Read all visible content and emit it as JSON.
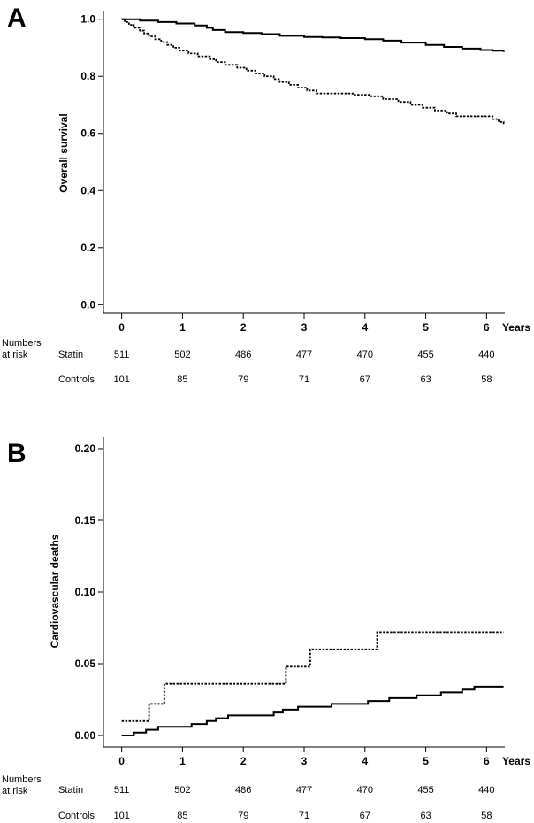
{
  "figure": {
    "risk_row_title_line1": "Numbers",
    "risk_row_title_line2": "at risk"
  },
  "chart_data": [
    {
      "type": "line",
      "panel_label": "A",
      "title": "",
      "xlabel": "Years",
      "ylabel": "Overall survival",
      "xlim": [
        -0.3,
        6.3
      ],
      "ylim": [
        -0.03,
        1.03
      ],
      "x_ticks": [
        0,
        1,
        2,
        3,
        4,
        5,
        6
      ],
      "y_ticks": [
        0.0,
        0.2,
        0.4,
        0.6,
        0.8,
        1.0
      ],
      "y_tick_labels": [
        "0.0",
        "0.2",
        "0.4",
        "0.6",
        "0.8",
        "1.0"
      ],
      "grid": false,
      "series": [
        {
          "style": "solid",
          "color": "#000000",
          "x": [
            0,
            0.3,
            0.6,
            0.9,
            1.2,
            1.4,
            1.5,
            1.7,
            2.0,
            2.3,
            2.6,
            3.0,
            3.3,
            3.6,
            4.0,
            4.3,
            4.6,
            5.0,
            5.3,
            5.6,
            5.9,
            6.1,
            6.28
          ],
          "y": [
            1.0,
            0.995,
            0.99,
            0.985,
            0.978,
            0.97,
            0.962,
            0.955,
            0.952,
            0.948,
            0.942,
            0.938,
            0.936,
            0.934,
            0.93,
            0.925,
            0.918,
            0.91,
            0.903,
            0.897,
            0.892,
            0.89,
            0.885
          ]
        },
        {
          "style": "dashed",
          "color": "#000000",
          "x": [
            0,
            0.05,
            0.12,
            0.2,
            0.3,
            0.37,
            0.45,
            0.55,
            0.65,
            0.75,
            0.85,
            0.95,
            1.1,
            1.25,
            1.45,
            1.55,
            1.7,
            1.9,
            2.05,
            2.2,
            2.35,
            2.5,
            2.6,
            2.75,
            2.9,
            3.05,
            3.2,
            3.5,
            3.8,
            4.1,
            4.3,
            4.55,
            4.75,
            4.95,
            5.15,
            5.35,
            5.5,
            5.7,
            5.95,
            6.1,
            6.2,
            6.28
          ],
          "y": [
            1.0,
            0.99,
            0.98,
            0.97,
            0.96,
            0.95,
            0.94,
            0.93,
            0.92,
            0.91,
            0.9,
            0.89,
            0.88,
            0.87,
            0.86,
            0.85,
            0.84,
            0.83,
            0.82,
            0.81,
            0.8,
            0.79,
            0.78,
            0.77,
            0.76,
            0.75,
            0.74,
            0.74,
            0.735,
            0.73,
            0.72,
            0.71,
            0.7,
            0.69,
            0.68,
            0.67,
            0.66,
            0.66,
            0.66,
            0.65,
            0.64,
            0.63
          ]
        }
      ],
      "risk_table": {
        "rows": [
          {
            "label": "Statin",
            "values": [
              "511",
              "502",
              "486",
              "477",
              "470",
              "455",
              "440"
            ]
          },
          {
            "label": "Controls",
            "values": [
              "101",
              "85",
              "79",
              "71",
              "67",
              "63",
              "58"
            ]
          }
        ]
      }
    },
    {
      "type": "line",
      "panel_label": "B",
      "title": "",
      "xlabel": "Years",
      "ylabel": "Cardiovascular deaths",
      "xlim": [
        -0.3,
        6.3
      ],
      "ylim": [
        -0.008,
        0.208
      ],
      "x_ticks": [
        0,
        1,
        2,
        3,
        4,
        5,
        6
      ],
      "y_ticks": [
        0.0,
        0.05,
        0.1,
        0.15,
        0.2
      ],
      "y_tick_labels": [
        "0.00",
        "0.05",
        "0.10",
        "0.15",
        "0.20"
      ],
      "grid": false,
      "series": [
        {
          "style": "solid",
          "color": "#000000",
          "step": true,
          "x": [
            0,
            0.2,
            0.4,
            0.6,
            1.15,
            1.4,
            1.55,
            1.75,
            2.5,
            2.65,
            2.9,
            3.45,
            4.05,
            4.4,
            4.85,
            5.25,
            5.6,
            5.8,
            6.28
          ],
          "y": [
            0.0,
            0.002,
            0.004,
            0.006,
            0.008,
            0.01,
            0.012,
            0.014,
            0.016,
            0.018,
            0.02,
            0.022,
            0.024,
            0.026,
            0.028,
            0.03,
            0.032,
            0.034,
            0.034
          ]
        },
        {
          "style": "dashed",
          "color": "#000000",
          "step": true,
          "x": [
            0,
            0.45,
            0.7,
            2.7,
            3.1,
            4.2,
            6.28
          ],
          "y": [
            0.01,
            0.022,
            0.036,
            0.048,
            0.06,
            0.072,
            0.072
          ]
        }
      ],
      "risk_table": {
        "rows": [
          {
            "label": "Statin",
            "values": [
              "511",
              "502",
              "486",
              "477",
              "470",
              "455",
              "440"
            ]
          },
          {
            "label": "Controls",
            "values": [
              "101",
              "85",
              "79",
              "71",
              "67",
              "63",
              "58"
            ]
          }
        ]
      }
    }
  ]
}
